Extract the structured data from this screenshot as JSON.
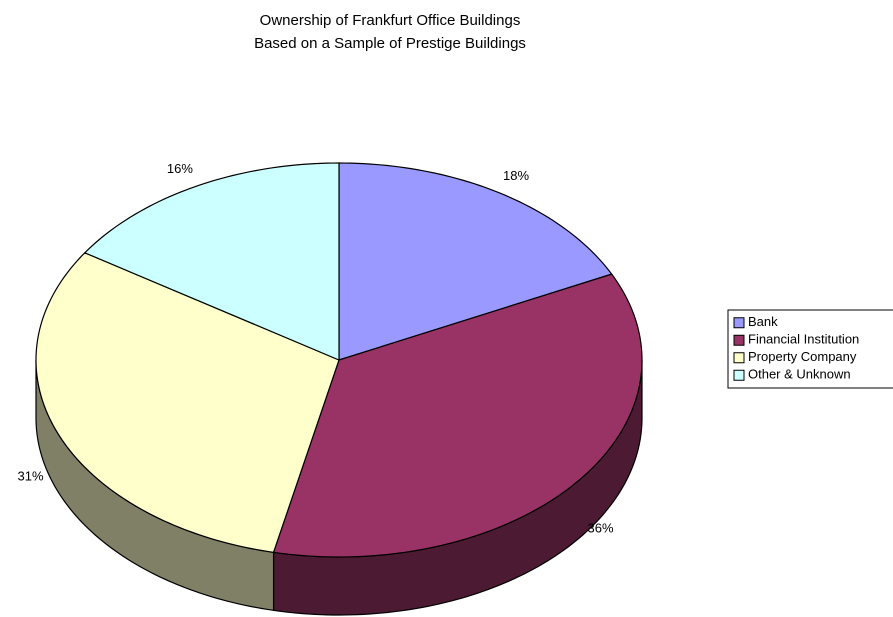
{
  "chart_data": {
    "type": "pie3d",
    "title": "Ownership of Frankfurt Office Buildings",
    "subtitle": "Based on a Sample of Prestige Buildings",
    "categories": [
      "Bank",
      "Financial Institution",
      "Property Company",
      "Other & Unknown"
    ],
    "values": [
      18,
      36,
      31,
      16
    ],
    "value_labels": [
      "18%",
      "36%",
      "31%",
      "16%"
    ],
    "colors": [
      "#9999ff",
      "#993366",
      "#ffffcc",
      "#ccffff"
    ],
    "legend": "right"
  }
}
